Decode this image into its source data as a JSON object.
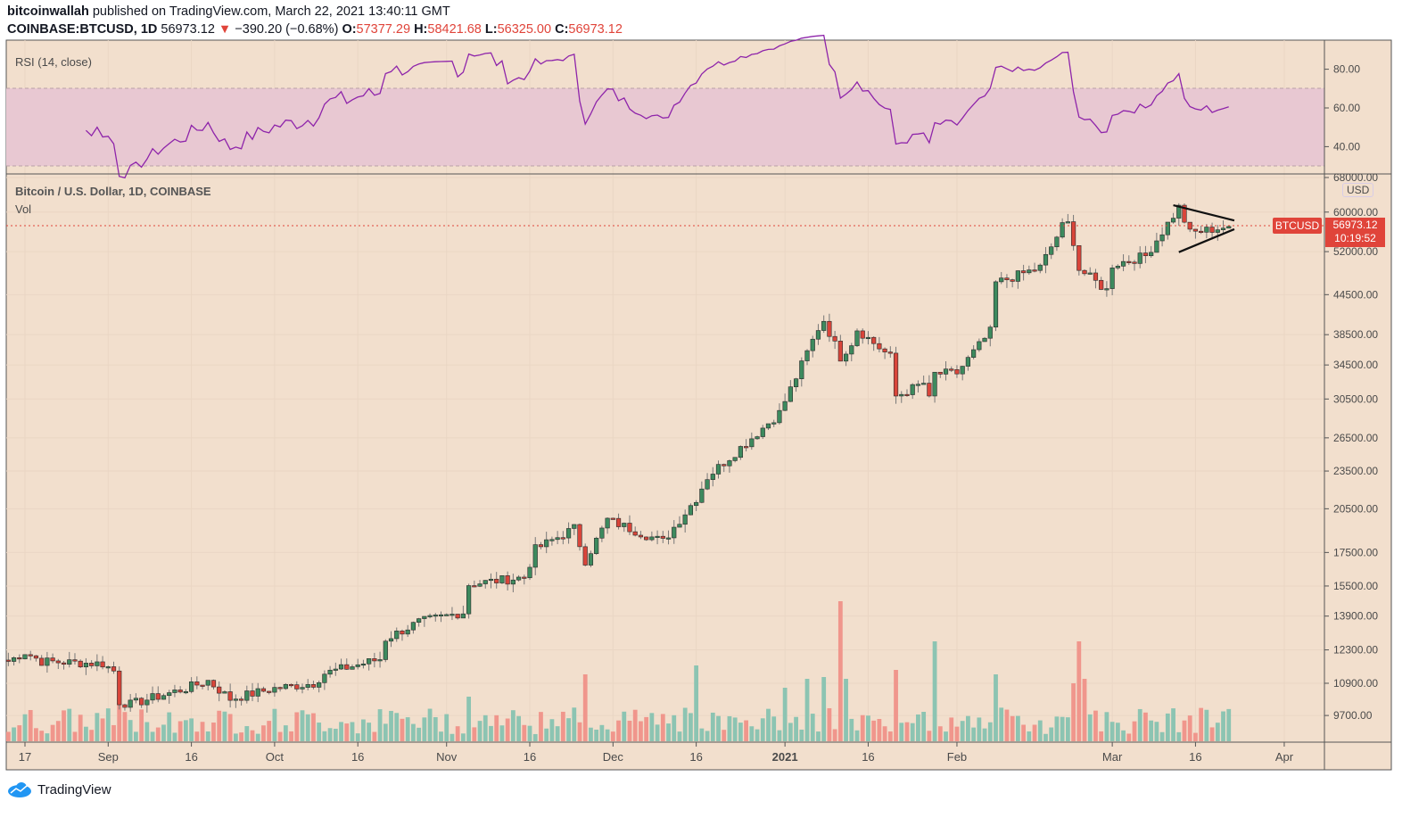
{
  "header": {
    "author": "bitcoinwallah",
    "published": " published on TradingView.com, March 22, 2021 13:40:11 GMT",
    "symbol": "COINBASE:BTCUSD, 1D",
    "last": "56973.12",
    "arrow": "▼",
    "change": "−390.20 (−0.68%)",
    "o_label": "O:",
    "o": "57377.29",
    "h_label": "H:",
    "h": "58421.68",
    "l_label": "L:",
    "l": "56325.00",
    "c_label": "C:",
    "c": "56973.12"
  },
  "rsi_panel": {
    "title": "RSI (14, close)"
  },
  "price_panel": {
    "title": "Bitcoin / U.S. Dollar, 1D, COINBASE",
    "vol": "Vol",
    "currency": "USD"
  },
  "price_badge": {
    "symbol": "BTCUSD",
    "price": "56973.12",
    "countdown": "10:19:52"
  },
  "footer": {
    "brand": "TradingView"
  },
  "colors": {
    "background": "#f2dfcd",
    "up": "#3d8a5e",
    "down": "#d9453a",
    "vol_up": "#8cc4b2",
    "vol_down": "#f0968c",
    "rsi_line": "#8e24aa",
    "rsi_band": "#e8c8d2",
    "badge": "#e0443a"
  },
  "chart_data": {
    "type": "candlestick",
    "title": "Bitcoin / U.S. Dollar, 1D, COINBASE",
    "y_scale": "log",
    "ylim": [
      9100,
      69000
    ],
    "price_ticks": [
      "68000.00",
      "60000.00",
      "52000.00",
      "44500.00",
      "38500.00",
      "34500.00",
      "30500.00",
      "26500.00",
      "23500.00",
      "20500.00",
      "17500.00",
      "15500.00",
      "13900.00",
      "12300.00",
      "10900.00",
      "9700.00"
    ],
    "time_ticks": [
      {
        "label": "17",
        "day": 3
      },
      {
        "label": "Sep",
        "day": 18
      },
      {
        "label": "16",
        "day": 33
      },
      {
        "label": "Oct",
        "day": 48
      },
      {
        "label": "16",
        "day": 63
      },
      {
        "label": "Nov",
        "day": 79
      },
      {
        "label": "16",
        "day": 94
      },
      {
        "label": "Dec",
        "day": 109
      },
      {
        "label": "16",
        "day": 124
      },
      {
        "label": "2021",
        "day": 140
      },
      {
        "label": "16",
        "day": 155
      },
      {
        "label": "Feb",
        "day": 171
      },
      {
        "label": "Mar",
        "day": 199
      },
      {
        "label": "16",
        "day": 214
      },
      {
        "label": "Apr",
        "day": 230
      }
    ],
    "x_unit": "days since Aug 14, 2020",
    "close_keypoints": [
      [
        0,
        11800
      ],
      [
        3,
        12200
      ],
      [
        6,
        11800
      ],
      [
        17,
        11700
      ],
      [
        19,
        11400
      ],
      [
        20,
        10200
      ],
      [
        22,
        10100
      ],
      [
        32,
        10700
      ],
      [
        36,
        11000
      ],
      [
        40,
        10300
      ],
      [
        48,
        10700
      ],
      [
        55,
        10900
      ],
      [
        57,
        11300
      ],
      [
        67,
        11900
      ],
      [
        68,
        12800
      ],
      [
        74,
        13600
      ],
      [
        82,
        14100
      ],
      [
        83,
        15600
      ],
      [
        93,
        16000
      ],
      [
        95,
        17700
      ],
      [
        102,
        19100
      ],
      [
        104,
        17000
      ],
      [
        108,
        19700
      ],
      [
        118,
        18200
      ],
      [
        124,
        21300
      ],
      [
        126,
        23000
      ],
      [
        134,
        26500
      ],
      [
        139,
        29000
      ],
      [
        142,
        33000
      ],
      [
        146,
        39400
      ],
      [
        147,
        40600
      ],
      [
        150,
        35500
      ],
      [
        152,
        37400
      ],
      [
        153,
        39300
      ],
      [
        159,
        35500
      ],
      [
        160,
        30800
      ],
      [
        165,
        32300
      ],
      [
        166,
        30400
      ],
      [
        167,
        33400
      ],
      [
        171,
        33500
      ],
      [
        177,
        38900
      ],
      [
        178,
        46400
      ],
      [
        186,
        49100
      ],
      [
        190,
        57000
      ],
      [
        191,
        57500
      ],
      [
        192,
        54000
      ],
      [
        193,
        48800
      ],
      [
        198,
        45200
      ],
      [
        199,
        49600
      ],
      [
        205,
        51200
      ],
      [
        211,
        61000
      ],
      [
        213,
        55600
      ],
      [
        220,
        56973.12
      ]
    ],
    "last_price": 56973.12,
    "volume_spikes": [
      [
        20,
        48
      ],
      [
        83,
        50
      ],
      [
        104,
        75
      ],
      [
        124,
        85
      ],
      [
        140,
        60
      ],
      [
        144,
        70
      ],
      [
        147,
        72
      ],
      [
        150,
        157
      ],
      [
        151,
        70
      ],
      [
        160,
        80
      ],
      [
        167,
        112
      ],
      [
        178,
        75
      ],
      [
        192,
        65
      ],
      [
        193,
        112
      ],
      [
        194,
        70
      ]
    ],
    "rsi": {
      "period": 14,
      "ticks": [
        "80.00",
        "60.00",
        "40.00"
      ],
      "band": [
        30,
        70
      ]
    },
    "triangle_pattern": {
      "upper": [
        [
          210,
          61500
        ],
        [
          221,
          58200
        ]
      ],
      "lower": [
        [
          211,
          51900
        ],
        [
          221,
          56400
        ]
      ]
    }
  }
}
